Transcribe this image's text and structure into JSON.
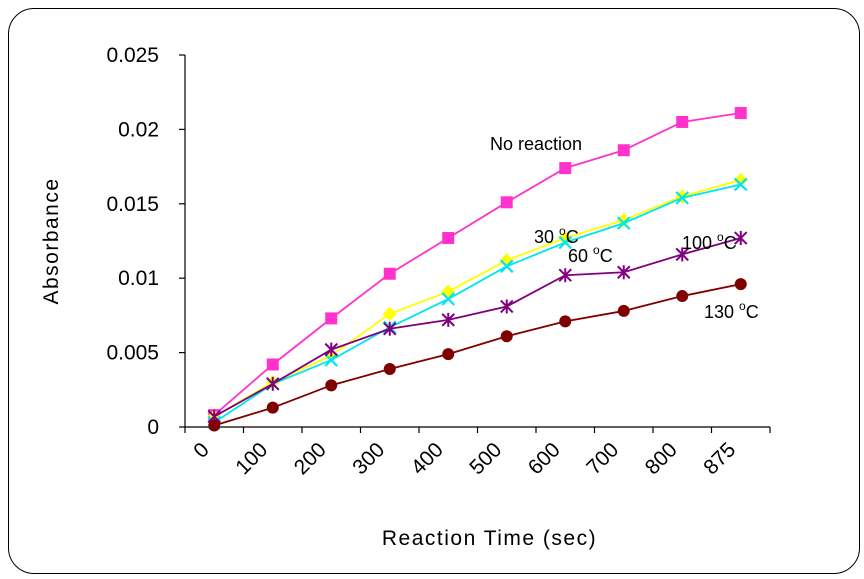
{
  "chart_data": {
    "type": "line",
    "xlabel": "Reaction Time (sec)",
    "ylabel": "Absorbance",
    "x_tick_labels": [
      "0",
      "100",
      "200",
      "300",
      "400",
      "500",
      "600",
      "700",
      "800",
      "875"
    ],
    "y_tick_labels": [
      "0",
      "0.005",
      "0.01",
      "0.015",
      "0.02",
      "0.025"
    ],
    "ylim": [
      0,
      0.025
    ],
    "grid": false,
    "legend": "none",
    "series": [
      {
        "name": "No reaction",
        "color": "#ff33cc",
        "marker": "square",
        "values": [
          0.0008,
          0.0042,
          0.0073,
          0.0103,
          0.0127,
          0.0151,
          0.0174,
          0.0186,
          0.0205,
          0.0211
        ]
      },
      {
        "name": "30 °C",
        "color": "#ffff00",
        "marker": "diamond",
        "values": [
          0.0007,
          0.003,
          0.0048,
          0.0076,
          0.0091,
          0.0112,
          0.0127,
          0.0139,
          0.0155,
          0.0166
        ]
      },
      {
        "name": "60 °C",
        "color": "#00e5ee",
        "marker": "x",
        "values": [
          0.0003,
          0.0029,
          0.0045,
          0.0067,
          0.0086,
          0.0108,
          0.0124,
          0.0137,
          0.0154,
          0.0163
        ]
      },
      {
        "name": "100 °C",
        "color": "#800080",
        "marker": "asterisk",
        "values": [
          0.0007,
          0.0029,
          0.0052,
          0.0066,
          0.0072,
          0.0081,
          0.0102,
          0.0104,
          0.0116,
          0.0127
        ]
      },
      {
        "name": "130 °C",
        "color": "#800000",
        "marker": "circle",
        "values": [
          0.0001,
          0.0013,
          0.0028,
          0.0039,
          0.0049,
          0.0061,
          0.0071,
          0.0078,
          0.0088,
          0.0096
        ]
      }
    ],
    "annotations": [
      {
        "main": "No reaction",
        "sup": ""
      },
      {
        "main": "30 ",
        "sup": "o",
        "tail": "C"
      },
      {
        "main": "60 ",
        "sup": "o",
        "tail": "C"
      },
      {
        "main": "100 ",
        "sup": "o",
        "tail": "C"
      },
      {
        "main": "130 ",
        "sup": "o",
        "tail": "C"
      }
    ]
  }
}
